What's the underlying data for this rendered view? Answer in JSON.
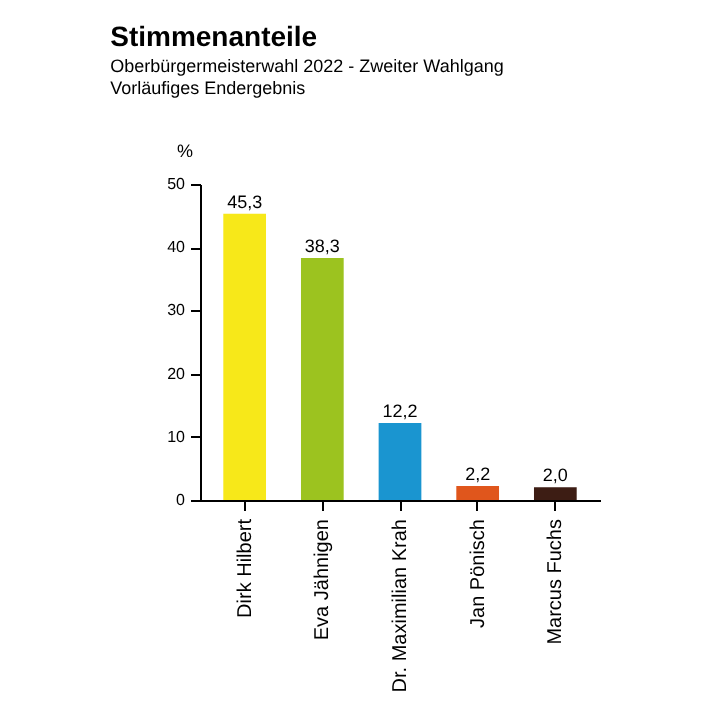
{
  "chart_data": {
    "type": "bar",
    "title": "Stimmenanteile",
    "subtitle": "Oberbürgermeisterwahl 2022 - Zweiter Wahlgang\nVorläufiges Endergebnis",
    "ylabel": "%",
    "categories": [
      "Dirk Hilbert",
      "Eva Jähnigen",
      "Dr. Maximilian Krah",
      "Jan Pönisch",
      "Marcus Fuchs"
    ],
    "values": [
      45.3,
      38.3,
      12.2,
      2.2,
      2.0
    ],
    "colors": [
      "#f7e819",
      "#9cc31f",
      "#1a95d0",
      "#e0561c",
      "#3d1d14"
    ],
    "value_labels": [
      "45,3",
      "38,3",
      "12,2",
      "2,2",
      "2,0"
    ],
    "ylim": [
      0,
      50
    ],
    "yticks": [
      0,
      10,
      20,
      30,
      40,
      50
    ],
    "grid": false
  }
}
